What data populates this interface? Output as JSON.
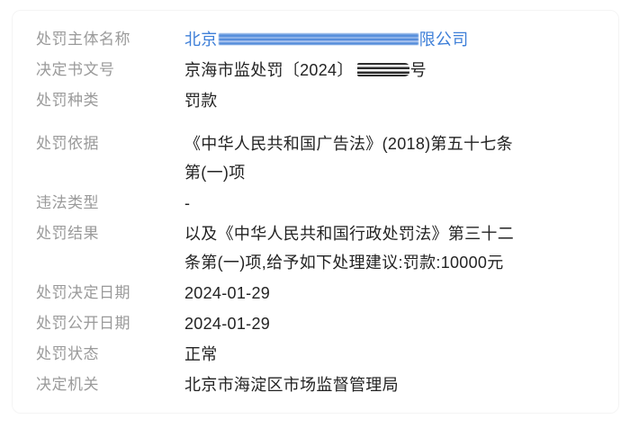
{
  "page": {
    "background": "#ffffff",
    "label_color": "#9a9a9a",
    "value_color": "#232323",
    "company_link_color": "#3e7fd8"
  },
  "record": {
    "rows": [
      {
        "label": "处罚主体名称",
        "value_prefix": "北京",
        "value_suffix": "限公司",
        "redacted": true,
        "redaction_style": "blue-smear"
      },
      {
        "label": "决定书文号",
        "value_prefix": "京海市监处罚〔2024〕",
        "value_suffix": "号",
        "redacted": true,
        "redaction_style": "dark-smear"
      },
      {
        "label": "处罚种类",
        "value": "罚款"
      },
      {
        "label": "处罚依据",
        "value": "《中华人民共和国广告法》(2018)第五十七条\n第(一)项"
      },
      {
        "label": "违法类型",
        "value": "-"
      },
      {
        "label": "处罚结果",
        "value": "以及《中华人民共和国行政处罚法》第三十二\n条第(一)项,给予如下处理建议:罚款:10000元"
      },
      {
        "label": "处罚决定日期",
        "value": "2024-01-29"
      },
      {
        "label": "处罚公开日期",
        "value": "2024-01-29"
      },
      {
        "label": "处罚状态",
        "value": "正常"
      },
      {
        "label": "决定机关",
        "value": "北京市海淀区市场监督管理局"
      }
    ]
  }
}
